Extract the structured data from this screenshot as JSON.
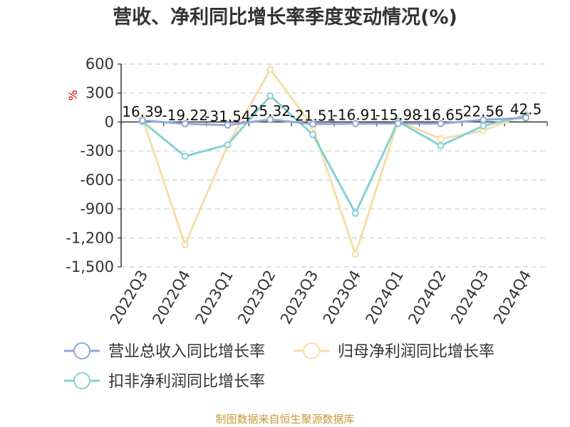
{
  "chart_data": {
    "type": "line",
    "title": "营收、净利同比增长率季度变动情况(%)",
    "unit_label": "%",
    "categories": [
      "2022Q3",
      "2022Q4",
      "2023Q1",
      "2023Q2",
      "2023Q3",
      "2023Q4",
      "2024Q1",
      "2024Q2",
      "2024Q3",
      "2024Q4"
    ],
    "ylim": [
      -1500,
      600
    ],
    "yticks": [
      600,
      300,
      0,
      -300,
      -600,
      -900,
      -1200,
      -1500
    ],
    "ytick_labels": [
      "600",
      "300",
      "0",
      "-300",
      "-600",
      "-900",
      "-1,200",
      "-1,500"
    ],
    "grid": true,
    "legend_position": "bottom-left",
    "series": [
      {
        "name": "营业总收入同比增长率",
        "color": "#8fa9d6",
        "values": [
          16.39,
          -19.22,
          -31.54,
          25.32,
          -21.51,
          -16.91,
          -15.98,
          -16.65,
          22.56,
          42.5
        ],
        "labels": [
          "16.39",
          "-19.22",
          "-31.54",
          "25.32",
          "-21.51",
          "-16.91",
          "-15.98",
          "-16.65",
          "22.56",
          "42.5"
        ]
      },
      {
        "name": "归母净利润同比增长率",
        "color": "#f8dda6",
        "values": [
          40,
          -1270,
          -240,
          545,
          -50,
          -1370,
          10,
          -175,
          -90,
          80
        ]
      },
      {
        "name": "扣非净利润同比增长率",
        "color": "#86d0d6",
        "values": [
          5,
          -355,
          -235,
          270,
          -130,
          -945,
          5,
          -245,
          -40,
          65
        ]
      }
    ]
  },
  "source_text": "制图数据来自恒生聚源数据库"
}
